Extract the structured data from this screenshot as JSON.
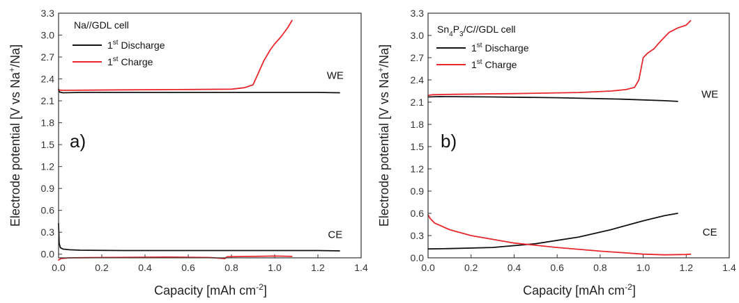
{
  "chart_data": [
    {
      "type": "line",
      "panel_label": "a)",
      "legend_title": "Na//GDL cell",
      "xlabel": "Capacity [mAh cm",
      "xlabel_sup": "-2",
      "xlabel_end": "]",
      "ylabel_main": "Electrode potential [V vs Na",
      "ylabel_sup": "+",
      "ylabel_end": "/Na]",
      "xlim": [
        0,
        1.4
      ],
      "ylim": [
        -0.05,
        3.3
      ],
      "xticks": [
        "0.0",
        "0.2",
        "0.4",
        "0.6",
        "0.8",
        "1.0",
        "1.2",
        "1.4"
      ],
      "yticks": [
        "0.0",
        "0.3",
        "0.6",
        "0.9",
        "1.2",
        "1.5",
        "1.8",
        "2.1",
        "2.4",
        "2.7",
        "3.0",
        "3.3"
      ],
      "annotations": [
        {
          "text": "WE",
          "x": 1.28,
          "y": 2.4
        },
        {
          "text": "CE",
          "x": 1.28,
          "y": 0.22
        }
      ],
      "series": [
        {
          "name_pre": "1",
          "name_sup": "st",
          "name_post": " Discharge",
          "color": "#111111",
          "segments": [
            {
              "x": [
                0,
                0.005,
                0.02,
                0.1,
                0.4,
                0.8,
                1.2,
                1.3
              ],
              "y": [
                2.26,
                2.22,
                2.21,
                2.215,
                2.215,
                2.215,
                2.215,
                2.21
              ]
            },
            {
              "x": [
                0,
                0.003,
                0.008,
                0.02,
                0.05,
                0.1,
                0.3,
                0.5,
                0.8,
                1.0,
                1.2,
                1.3
              ],
              "y": [
                0.42,
                0.15,
                0.09,
                0.07,
                0.06,
                0.055,
                0.05,
                0.05,
                0.05,
                0.05,
                0.05,
                0.045
              ]
            }
          ]
        },
        {
          "name_pre": "1",
          "name_sup": "st",
          "name_post": " Charge",
          "color": "#e8262b",
          "segments": [
            {
              "x": [
                0,
                0.01,
                0.05,
                0.3,
                0.6,
                0.8,
                0.86,
                0.9,
                0.92,
                0.95,
                0.98,
                1.0,
                1.03,
                1.06,
                1.08
              ],
              "y": [
                2.25,
                2.245,
                2.245,
                2.25,
                2.255,
                2.26,
                2.28,
                2.32,
                2.45,
                2.65,
                2.8,
                2.88,
                2.98,
                3.1,
                3.2
              ]
            },
            {
              "x": [
                0,
                0.01,
                0.05,
                0.2,
                0.5,
                0.7,
                0.77,
                0.78,
                0.9,
                1.0,
                1.08
              ],
              "y": [
                -0.08,
                -0.06,
                -0.05,
                -0.045,
                -0.04,
                -0.045,
                -0.06,
                -0.035,
                -0.03,
                -0.025,
                -0.03
              ]
            }
          ]
        }
      ]
    },
    {
      "type": "line",
      "panel_label": "b)",
      "legend_title_pre": "Sn",
      "legend_title_sub1": "4",
      "legend_title_mid": "P",
      "legend_title_sub2": "3",
      "legend_title_post": "/C//GDL cell",
      "xlabel": "Capacity [mAh cm",
      "xlabel_sup": "-2",
      "xlabel_end": "]",
      "ylabel_main": "Electrode potential [V vs Na",
      "ylabel_sup": "+",
      "ylabel_end": "/Na]",
      "xlim": [
        0,
        1.4
      ],
      "ylim": [
        0,
        3.3
      ],
      "xticks": [
        "0.0",
        "0.2",
        "0.4",
        "0.6",
        "0.8",
        "1.0",
        "1.2",
        "1.4"
      ],
      "yticks": [
        "0.0",
        "0.3",
        "0.6",
        "0.9",
        "1.2",
        "1.5",
        "1.8",
        "2.1",
        "2.4",
        "2.7",
        "3.0",
        "3.3"
      ],
      "annotations": [
        {
          "text": "WE",
          "x": 1.31,
          "y": 2.16
        },
        {
          "text": "CE",
          "x": 1.31,
          "y": 0.3
        }
      ],
      "series": [
        {
          "name_pre": "1",
          "name_sup": "st",
          "name_post": " Discharge",
          "color": "#111111",
          "segments": [
            {
              "x": [
                0,
                0.05,
                0.3,
                0.6,
                0.9,
                1.1,
                1.16
              ],
              "y": [
                2.17,
                2.175,
                2.17,
                2.16,
                2.14,
                2.12,
                2.11
              ]
            },
            {
              "x": [
                0,
                0.1,
                0.3,
                0.5,
                0.7,
                0.85,
                1.0,
                1.1,
                1.16
              ],
              "y": [
                0.12,
                0.125,
                0.14,
                0.19,
                0.28,
                0.38,
                0.5,
                0.57,
                0.6
              ]
            }
          ]
        },
        {
          "name_pre": "1",
          "name_sup": "st",
          "name_post": " Charge",
          "color": "#e8262b",
          "segments": [
            {
              "x": [
                0,
                0.02,
                0.1,
                0.4,
                0.7,
                0.85,
                0.92,
                0.96,
                0.98,
                0.99,
                1.0,
                1.02,
                1.05,
                1.08,
                1.12,
                1.16,
                1.2,
                1.22
              ],
              "y": [
                2.19,
                2.2,
                2.205,
                2.215,
                2.23,
                2.25,
                2.27,
                2.3,
                2.4,
                2.55,
                2.7,
                2.76,
                2.82,
                2.92,
                3.04,
                3.1,
                3.14,
                3.2
              ]
            },
            {
              "x": [
                0,
                0.01,
                0.03,
                0.1,
                0.2,
                0.4,
                0.6,
                0.8,
                0.9,
                1.0,
                1.1,
                1.2,
                1.22
              ],
              "y": [
                0.58,
                0.53,
                0.47,
                0.38,
                0.3,
                0.2,
                0.14,
                0.09,
                0.07,
                0.05,
                0.04,
                0.045,
                0.05
              ]
            }
          ]
        }
      ]
    }
  ]
}
